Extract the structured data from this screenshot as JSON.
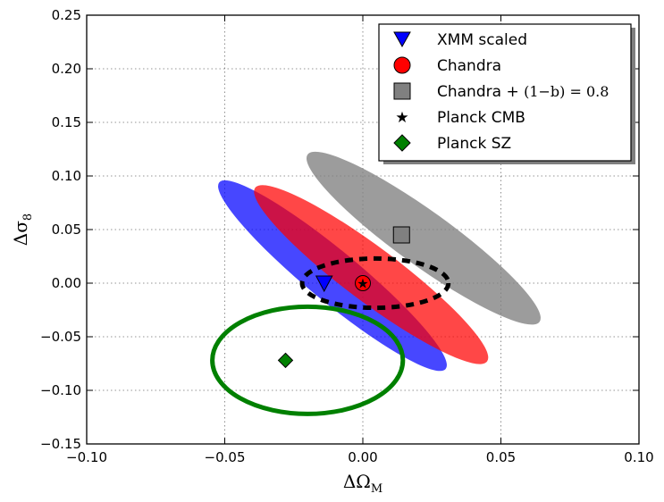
{
  "chart_data": {
    "type": "scatter",
    "title": "",
    "xlabel": "ΔΩ",
    "xlabel_sub": "M",
    "ylabel": "Δσ",
    "ylabel_sub": "8",
    "xlim": [
      -0.1,
      0.1
    ],
    "ylim": [
      -0.15,
      0.25
    ],
    "grid": true,
    "legend_position": "top-right",
    "xticks": [
      -0.1,
      -0.05,
      0.0,
      0.05,
      0.1
    ],
    "xtick_labels": [
      "−0.10",
      "−0.05",
      "0.00",
      "0.05",
      "0.10"
    ],
    "yticks": [
      -0.15,
      -0.1,
      -0.05,
      0.0,
      0.05,
      0.1,
      0.15,
      0.2,
      0.25
    ],
    "ytick_labels": [
      "−0.15",
      "−0.10",
      "−0.05",
      "0.00",
      "0.05",
      "0.10",
      "0.15",
      "0.20",
      "0.25"
    ],
    "series": [
      {
        "name": "XMM scaled",
        "marker": "triangle-down",
        "color": "#0000ff",
        "x": -0.014,
        "y": 0.0
      },
      {
        "name": "Chandra",
        "marker": "circle",
        "color": "#ff0000",
        "x": 0.0,
        "y": 0.0
      },
      {
        "name": "Chandra + (1−b) = 0.8",
        "name_text": "Chandra + ",
        "name_math": "(1−b) = 0.8",
        "marker": "square",
        "color": "#808080",
        "x": 0.014,
        "y": 0.045
      },
      {
        "name": "Planck CMB",
        "marker": "star",
        "color": "#000000",
        "x": 0.0,
        "y": 0.0
      },
      {
        "name": "Planck SZ",
        "marker": "diamond",
        "color": "#008000",
        "x": -0.028,
        "y": -0.072
      }
    ],
    "ellipses": [
      {
        "name": "xmm-ellipse",
        "style": "filled",
        "color": "#0000ff",
        "opacity": 0.72,
        "center": [
          -0.011,
          0.007
        ],
        "axis_end": [
          0.03,
          -0.08
        ],
        "half_width": 0.0092
      },
      {
        "name": "chandra-ellipse",
        "style": "filled",
        "color": "#ff0000",
        "opacity": 0.72,
        "center": [
          0.003,
          0.008
        ],
        "axis_end": [
          0.045,
          -0.073
        ],
        "half_width": 0.0098
      },
      {
        "name": "chandra-scaled-ellipse",
        "style": "filled",
        "color": "#808080",
        "opacity": 0.78,
        "center": [
          0.022,
          0.042
        ],
        "axis_end": [
          0.064,
          -0.036
        ],
        "half_width": 0.0098
      },
      {
        "name": "planck-cmb-ellipse",
        "style": "dashed",
        "color": "#000000",
        "center": [
          0.0045,
          0.0
        ],
        "rx": 0.0265,
        "ry": 0.023
      },
      {
        "name": "planck-sz-ellipse",
        "style": "solid",
        "color": "#008000",
        "center": [
          -0.02,
          -0.072
        ],
        "rx": 0.0345,
        "ry": 0.05
      }
    ]
  }
}
